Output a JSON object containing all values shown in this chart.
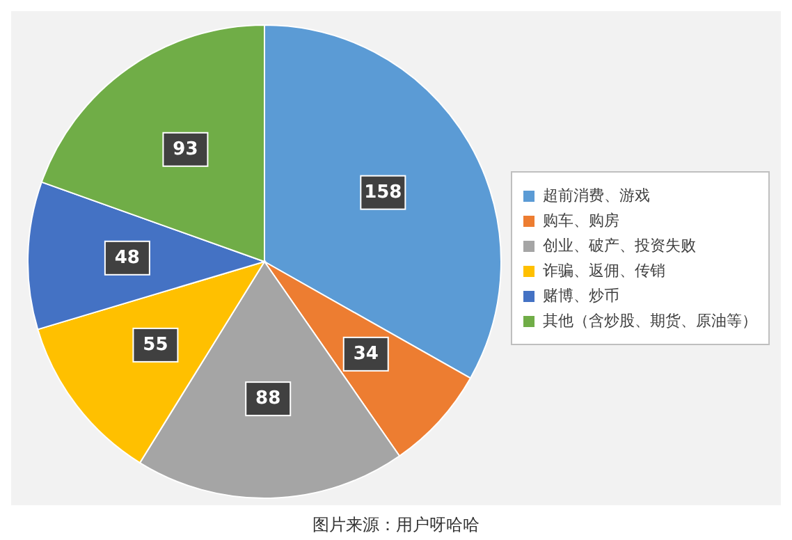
{
  "chart_data": {
    "type": "pie",
    "categories": [
      "超前消费、游戏",
      "购车、购房",
      "创业、破产、投资失败",
      "诈骗、返佣、传销",
      "赌博、炒币",
      "其他（含炒股、期货、原油等）"
    ],
    "values": [
      158,
      34,
      88,
      55,
      48,
      93
    ],
    "colors": [
      "#5b9bd5",
      "#ed7d31",
      "#a5a5a5",
      "#ffc000",
      "#4472c4",
      "#70ad47"
    ],
    "data_labels": true,
    "legend": "right",
    "annotations": [
      "图片来源：用户呀哈哈"
    ]
  }
}
